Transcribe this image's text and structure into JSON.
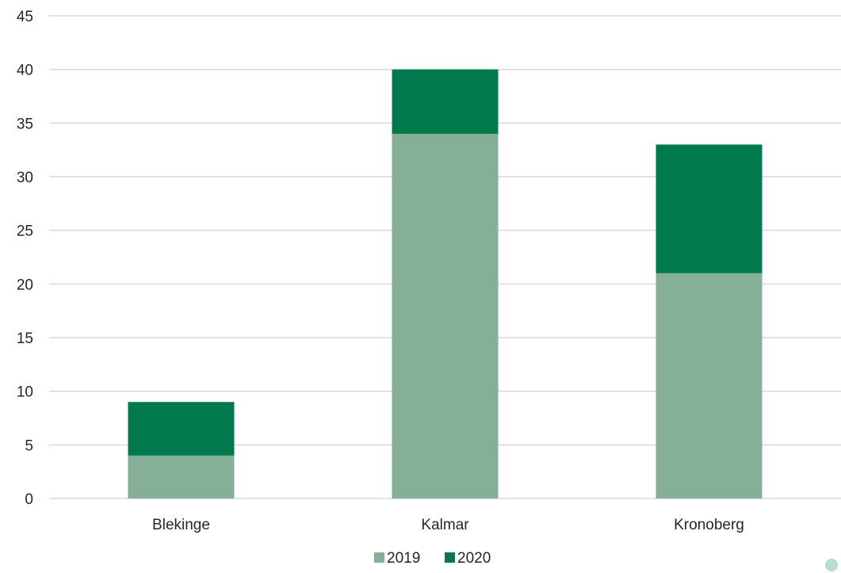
{
  "chart_data": {
    "type": "bar",
    "stacked": true,
    "categories": [
      "Blekinge",
      "Kalmar",
      "Kronoberg"
    ],
    "series": [
      {
        "name": "2019",
        "values": [
          4,
          34,
          21
        ],
        "color": "#86af98"
      },
      {
        "name": "2020",
        "values": [
          5,
          6,
          12
        ],
        "color": "#007a4d"
      }
    ],
    "yticks": [
      0,
      5,
      10,
      15,
      20,
      25,
      30,
      35,
      40,
      45
    ],
    "ylim": [
      0,
      45
    ],
    "grid": true,
    "legend_position": "bottom",
    "title": "",
    "xlabel": "",
    "ylabel": ""
  },
  "colors": {
    "gridline": "#d9d9d9",
    "text": "#262626",
    "corner_dot": "#b8dcd0"
  }
}
